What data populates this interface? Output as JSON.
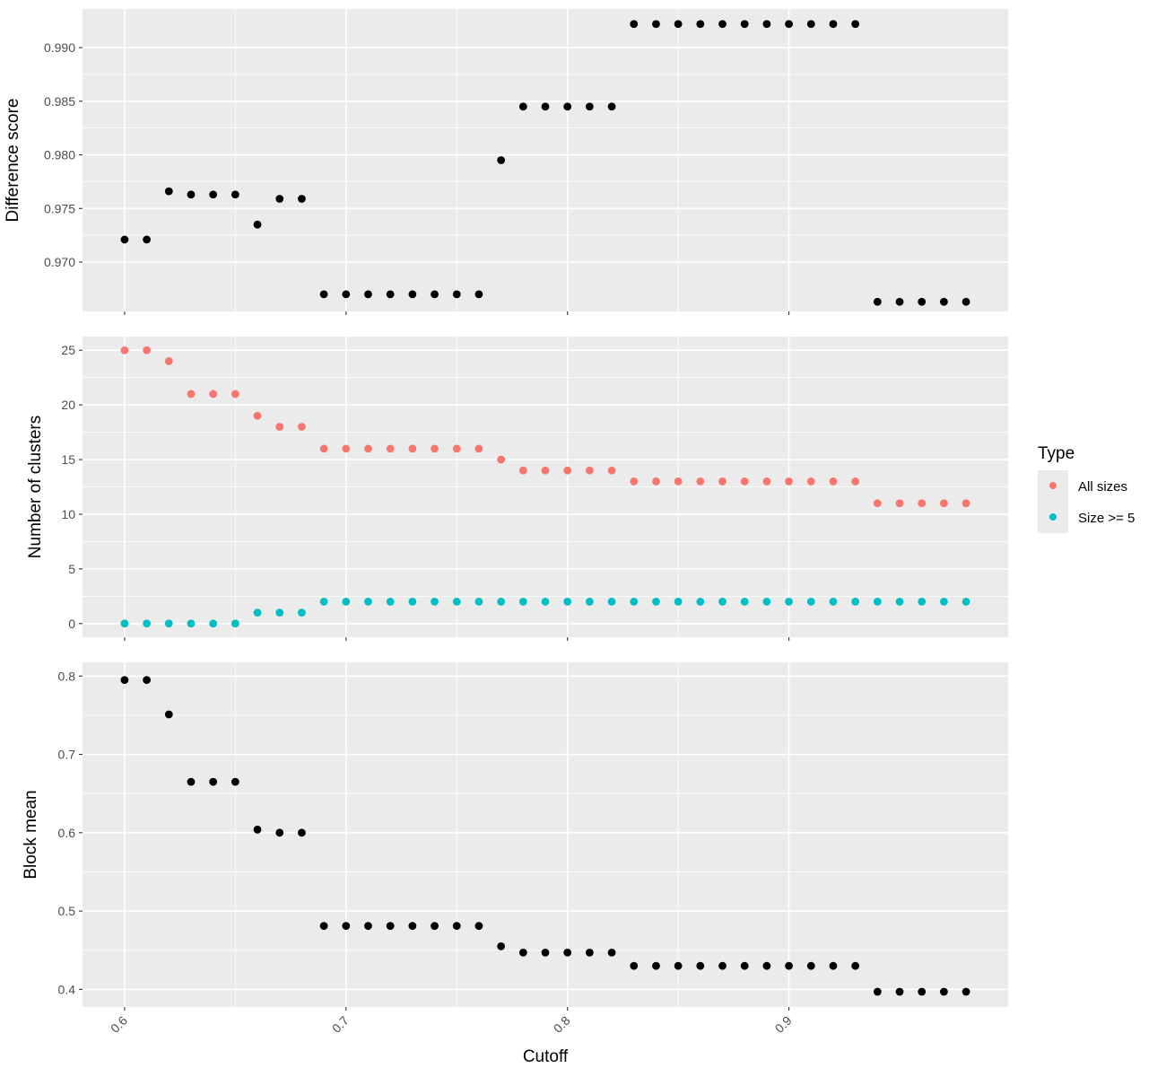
{
  "chart_data": {
    "type": "scatter",
    "x": [
      0.6,
      0.61,
      0.62,
      0.63,
      0.64,
      0.65,
      0.66,
      0.67,
      0.68,
      0.69,
      0.7,
      0.71,
      0.72,
      0.73,
      0.74,
      0.75,
      0.76,
      0.77,
      0.78,
      0.79,
      0.8,
      0.81,
      0.82,
      0.83,
      0.84,
      0.85,
      0.86,
      0.87,
      0.88,
      0.89,
      0.9,
      0.91,
      0.92,
      0.93,
      0.94,
      0.95,
      0.96,
      0.97,
      0.98
    ],
    "xlabel": "Cutoff",
    "xlim": [
      0.581,
      0.999
    ],
    "xticks": [
      0.6,
      0.7,
      0.8,
      0.9
    ],
    "xtick_labels": [
      "0.6",
      "0.7",
      "0.8",
      "0.9"
    ],
    "grid": true,
    "legend_placement": "right",
    "panels": [
      {
        "ylabel": "Difference score",
        "ylim": [
          0.9654,
          0.9936
        ],
        "yticks": [
          0.97,
          0.975,
          0.98,
          0.985,
          0.99
        ],
        "ytick_labels": [
          "0.970",
          "0.975",
          "0.980",
          "0.985",
          "0.990"
        ],
        "series": [
          {
            "color": "#000000",
            "values": [
              0.9721,
              0.9721,
              0.9766,
              0.9763,
              0.9763,
              0.9763,
              0.9735,
              0.9759,
              0.9759,
              0.967,
              0.967,
              0.967,
              0.967,
              0.967,
              0.967,
              0.967,
              0.967,
              0.9795,
              0.9845,
              0.9845,
              0.9845,
              0.9845,
              0.9845,
              0.9922,
              0.9922,
              0.9922,
              0.9922,
              0.9922,
              0.9922,
              0.9922,
              0.9922,
              0.9922,
              0.9922,
              0.9922,
              0.9663,
              0.9663,
              0.9663,
              0.9663,
              0.9663
            ]
          }
        ]
      },
      {
        "ylabel": "Number of clusters",
        "ylim": [
          -1.25,
          26.25
        ],
        "yticks": [
          0,
          5,
          10,
          15,
          20,
          25
        ],
        "ytick_labels": [
          "0",
          "5",
          "10",
          "15",
          "20",
          "25"
        ],
        "series": [
          {
            "name": "All sizes",
            "color": "#F8766D",
            "values": [
              25,
              25,
              24,
              21,
              21,
              21,
              19,
              18,
              18,
              16,
              16,
              16,
              16,
              16,
              16,
              16,
              16,
              15,
              14,
              14,
              14,
              14,
              14,
              13,
              13,
              13,
              13,
              13,
              13,
              13,
              13,
              13,
              13,
              13,
              11,
              11,
              11,
              11,
              11
            ]
          },
          {
            "name": "Size >= 5",
            "color": "#00BFC4",
            "values": [
              0,
              0,
              0,
              0,
              0,
              0,
              1,
              1,
              1,
              2,
              2,
              2,
              2,
              2,
              2,
              2,
              2,
              2,
              2,
              2,
              2,
              2,
              2,
              2,
              2,
              2,
              2,
              2,
              2,
              2,
              2,
              2,
              2,
              2,
              2,
              2,
              2,
              2,
              2
            ]
          }
        ]
      },
      {
        "ylabel": "Block mean",
        "ylim": [
          0.3775,
          0.8175
        ],
        "yticks": [
          0.4,
          0.5,
          0.6,
          0.7,
          0.8
        ],
        "ytick_labels": [
          "0.4",
          "0.5",
          "0.6",
          "0.7",
          "0.8"
        ],
        "series": [
          {
            "color": "#000000",
            "values": [
              0.795,
              0.795,
              0.751,
              0.665,
              0.665,
              0.665,
              0.604,
              0.6,
              0.6,
              0.481,
              0.481,
              0.481,
              0.481,
              0.481,
              0.481,
              0.481,
              0.481,
              0.455,
              0.447,
              0.447,
              0.447,
              0.447,
              0.447,
              0.43,
              0.43,
              0.43,
              0.43,
              0.43,
              0.43,
              0.43,
              0.43,
              0.43,
              0.43,
              0.43,
              0.397,
              0.397,
              0.397,
              0.397,
              0.397
            ]
          }
        ]
      }
    ],
    "legend": {
      "title": "Type",
      "items": [
        {
          "label": "All sizes",
          "color": "#F8766D"
        },
        {
          "label": "Size >= 5",
          "color": "#00BFC4"
        }
      ]
    }
  }
}
